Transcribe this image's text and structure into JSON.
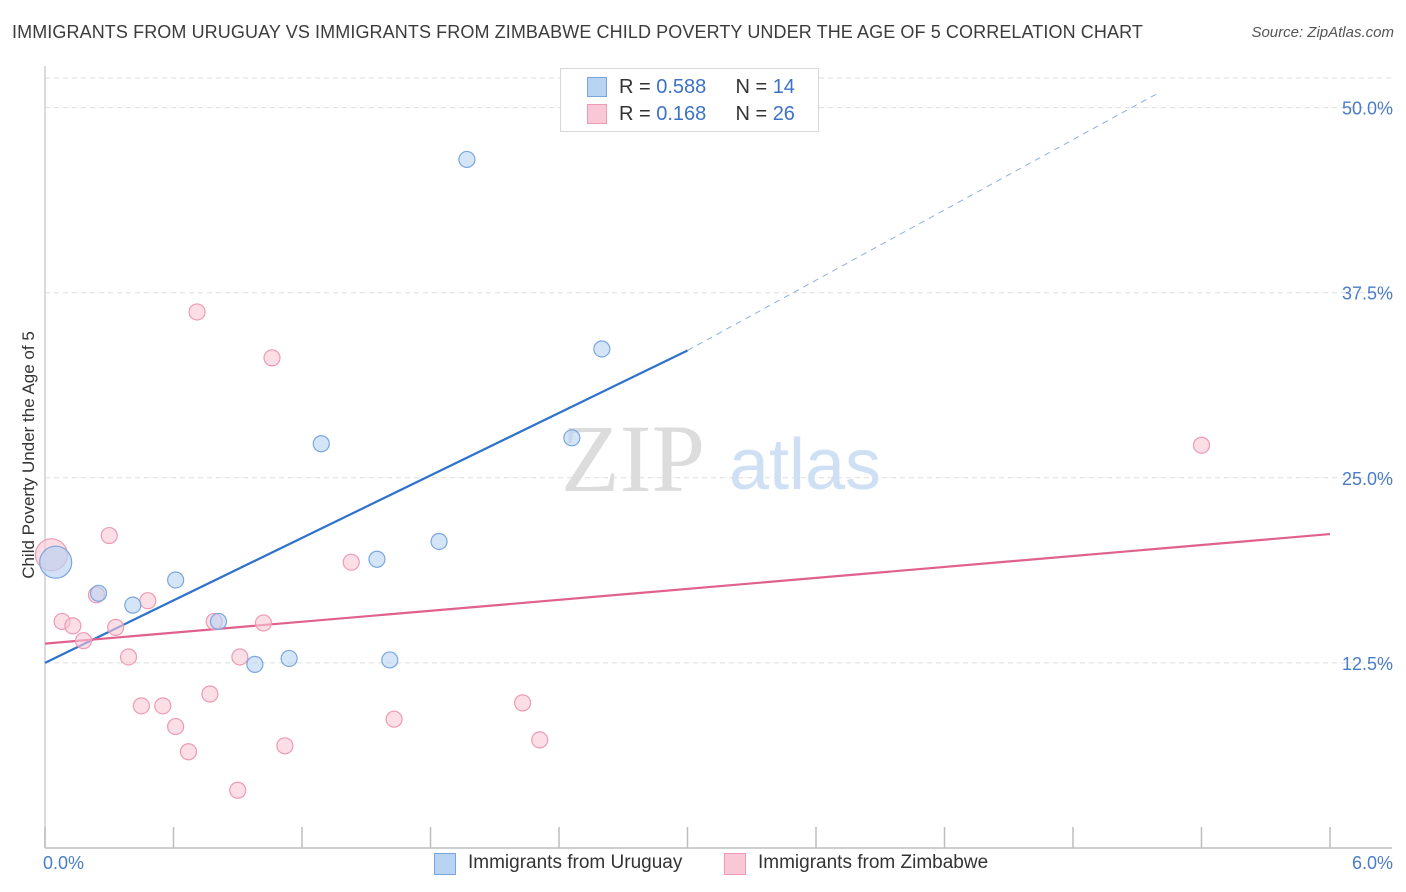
{
  "header": {
    "title": "IMMIGRANTS FROM URUGUAY VS IMMIGRANTS FROM ZIMBABWE CHILD POVERTY UNDER THE AGE OF 5 CORRELATION CHART",
    "source": "Source: ZipAtlas.com"
  },
  "watermark": {
    "zip": "ZIP",
    "atlas": "atlas"
  },
  "legend": {
    "uruguay": {
      "r_label": "R =",
      "r_value": "0.588",
      "n_label": "N =",
      "n_value": "14"
    },
    "zimbabwe": {
      "r_label": "R =",
      "r_value": "0.168",
      "n_label": "N =",
      "n_value": "26"
    }
  },
  "colors": {
    "uruguay_fill": "#b9d3f3",
    "uruguay_stroke": "#7aa6de",
    "uruguay_line": "#2f72cc",
    "zimbabwe_fill": "#f9c8d6",
    "zimbabwe_stroke": "#ee9ab5",
    "zimbabwe_line": "#e0608e",
    "grid": "#dddddd",
    "tick_text": "#4a7cc7"
  },
  "chart_data": {
    "type": "scatter",
    "title": "IMMIGRANTS FROM URUGUAY VS IMMIGRANTS FROM ZIMBABWE CHILD POVERTY UNDER THE AGE OF 5 CORRELATION CHART",
    "xlabel": "",
    "ylabel": "Child Poverty Under the Age of 5",
    "xlim": [
      0,
      6
    ],
    "ylim": [
      0,
      52
    ],
    "x_tick_labels": [
      {
        "value": 0,
        "label": "0.0%"
      },
      {
        "value": 6,
        "label": "6.0%"
      }
    ],
    "y_ticks": [
      {
        "value": 12.5,
        "label": "12.5%"
      },
      {
        "value": 25.0,
        "label": "25.0%"
      },
      {
        "value": 37.5,
        "label": "37.5%"
      },
      {
        "value": 50.0,
        "label": "50.0%"
      }
    ],
    "x_minor_ticks": [
      0,
      0.6,
      1.2,
      1.8,
      2.4,
      3.0,
      3.6,
      4.2,
      4.8,
      5.4,
      6.0
    ],
    "series": [
      {
        "name": "Immigrants from Uruguay",
        "points": [
          {
            "x": 0.05,
            "y": 19.3,
            "size": "large"
          },
          {
            "x": 0.25,
            "y": 17.2
          },
          {
            "x": 0.41,
            "y": 16.4
          },
          {
            "x": 0.61,
            "y": 18.1
          },
          {
            "x": 0.81,
            "y": 15.3
          },
          {
            "x": 0.98,
            "y": 12.4
          },
          {
            "x": 1.14,
            "y": 12.8
          },
          {
            "x": 1.29,
            "y": 27.3
          },
          {
            "x": 1.55,
            "y": 19.5
          },
          {
            "x": 1.61,
            "y": 12.7
          },
          {
            "x": 1.84,
            "y": 20.7
          },
          {
            "x": 1.97,
            "y": 46.5
          },
          {
            "x": 2.46,
            "y": 27.7
          },
          {
            "x": 2.6,
            "y": 33.7
          }
        ],
        "trend": {
          "x0": 0.0,
          "y0": 12.5,
          "x1": 3.0,
          "y1": 33.6,
          "dashed_to_x": 5.2,
          "dashed_to_y": 51.0
        }
      },
      {
        "name": "Immigrants from Zimbabwe",
        "points": [
          {
            "x": 0.03,
            "y": 19.8,
            "size": "large"
          },
          {
            "x": 0.08,
            "y": 15.3
          },
          {
            "x": 0.13,
            "y": 15.0
          },
          {
            "x": 0.18,
            "y": 14.0
          },
          {
            "x": 0.24,
            "y": 17.1
          },
          {
            "x": 0.3,
            "y": 21.1
          },
          {
            "x": 0.33,
            "y": 14.9
          },
          {
            "x": 0.39,
            "y": 12.9
          },
          {
            "x": 0.45,
            "y": 9.6
          },
          {
            "x": 0.48,
            "y": 16.7
          },
          {
            "x": 0.55,
            "y": 9.6
          },
          {
            "x": 0.61,
            "y": 8.2
          },
          {
            "x": 0.67,
            "y": 6.5
          },
          {
            "x": 0.71,
            "y": 36.2
          },
          {
            "x": 0.77,
            "y": 10.4
          },
          {
            "x": 0.79,
            "y": 15.3
          },
          {
            "x": 0.9,
            "y": 3.9
          },
          {
            "x": 0.91,
            "y": 12.9
          },
          {
            "x": 1.02,
            "y": 15.2
          },
          {
            "x": 1.06,
            "y": 33.1
          },
          {
            "x": 1.12,
            "y": 6.9
          },
          {
            "x": 1.43,
            "y": 19.3
          },
          {
            "x": 1.63,
            "y": 8.7
          },
          {
            "x": 2.23,
            "y": 9.8
          },
          {
            "x": 2.31,
            "y": 7.3
          },
          {
            "x": 5.4,
            "y": 27.2
          }
        ],
        "trend": {
          "x0": 0.0,
          "y0": 13.8,
          "x1": 6.0,
          "y1": 21.2
        }
      }
    ]
  },
  "bottom_legend": {
    "uruguay_label": "Immigrants from Uruguay",
    "zimbabwe_label": "Immigrants from Zimbabwe"
  }
}
